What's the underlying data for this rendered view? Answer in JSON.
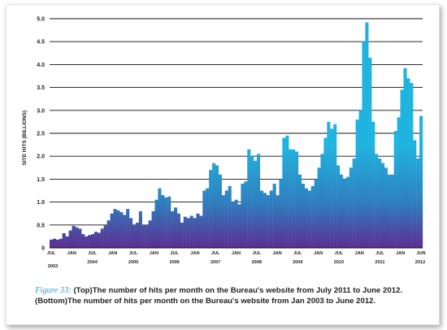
{
  "chart_data": {
    "type": "bar",
    "ylabel": "SITE HITS (BILLIONS)",
    "ylim": [
      0,
      5.0
    ],
    "yticks": [
      "0",
      "0.5",
      "1.0",
      "1.5",
      "2.0",
      "2.5",
      "3.0",
      "3.5",
      "4.0",
      "4.5",
      "5.0"
    ],
    "grid": true,
    "x_labels": [
      {
        "month": "JUL",
        "year": "2003"
      },
      {
        "month": "JAN",
        "year": ""
      },
      {
        "month": "JUL",
        "year": "2004"
      },
      {
        "month": "JAN",
        "year": ""
      },
      {
        "month": "JUL",
        "year": "2005"
      },
      {
        "month": "JAN",
        "year": ""
      },
      {
        "month": "JUL",
        "year": "2006"
      },
      {
        "month": "JAN",
        "year": ""
      },
      {
        "month": "JUL",
        "year": "2007"
      },
      {
        "month": "JAN",
        "year": ""
      },
      {
        "month": "JUL",
        "year": "2008"
      },
      {
        "month": "JAN",
        "year": ""
      },
      {
        "month": "JUL",
        "year": "2009"
      },
      {
        "month": "JAN",
        "year": ""
      },
      {
        "month": "JUL",
        "year": "2010"
      },
      {
        "month": "JAN",
        "year": ""
      },
      {
        "month": "JUL",
        "year": "2011"
      },
      {
        "month": "JAN",
        "year": ""
      },
      {
        "month": "JUN",
        "year": "2012"
      }
    ],
    "values": [
      0.18,
      0.2,
      0.18,
      0.2,
      0.32,
      0.25,
      0.38,
      0.48,
      0.45,
      0.42,
      0.3,
      0.25,
      0.28,
      0.3,
      0.35,
      0.33,
      0.42,
      0.5,
      0.6,
      0.75,
      0.85,
      0.82,
      0.78,
      0.72,
      0.85,
      0.65,
      0.5,
      0.55,
      0.8,
      0.5,
      0.5,
      0.6,
      0.8,
      1.05,
      1.3,
      1.15,
      1.1,
      1.12,
      0.8,
      0.88,
      0.75,
      0.55,
      0.68,
      0.65,
      0.7,
      0.65,
      0.75,
      0.7,
      1.25,
      1.3,
      1.7,
      1.85,
      1.8,
      1.6,
      1.15,
      1.25,
      1.35,
      1.0,
      1.05,
      0.95,
      1.4,
      1.45,
      2.15,
      2.0,
      1.9,
      2.05,
      1.25,
      1.2,
      1.15,
      1.25,
      1.4,
      1.15,
      1.5,
      2.4,
      2.45,
      2.15,
      2.15,
      2.1,
      1.6,
      1.4,
      1.3,
      1.25,
      1.35,
      1.5,
      1.75,
      2.05,
      2.4,
      2.75,
      2.6,
      2.7,
      1.8,
      1.6,
      1.5,
      1.55,
      1.75,
      1.95,
      2.8,
      3.0,
      4.5,
      4.92,
      4.15,
      2.75,
      2.05,
      1.95,
      1.85,
      1.75,
      1.6,
      1.6,
      2.55,
      2.85,
      3.45,
      3.92,
      3.7,
      3.6,
      2.35,
      1.95,
      2.88
    ]
  },
  "caption": {
    "figure": "Figure 33:",
    "line1_tag": "(Top)",
    "line1_text": "The number of hits per month on the Bureau's website from July 2011 to June 2012.",
    "line2_tag": "(Bottom)",
    "line2_text": "The number of hits per month on the Bureau's website from Jan 2003 to June 2012."
  },
  "colors": {
    "bar_top": "#1fb4e0",
    "bar_mid": "#2e7fbf",
    "bar_bottom": "#5b2d91",
    "grid": "#111111",
    "figure_label": "#2a9fd6"
  }
}
